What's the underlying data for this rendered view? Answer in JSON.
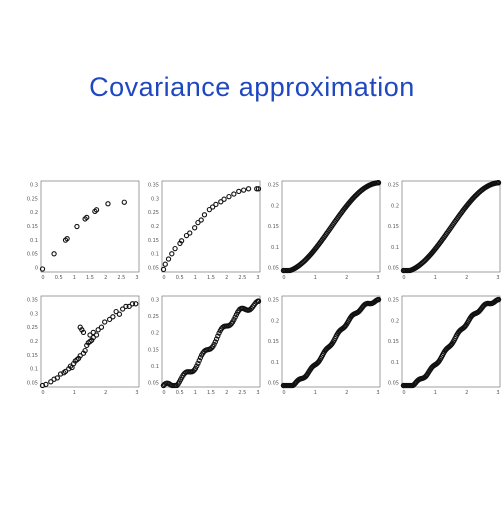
{
  "title": "Covariance approximation",
  "chart_data": [
    {
      "type": "scatter",
      "yticks": [
        "0.3",
        "0.25",
        "0.2",
        "0.15",
        "0.1",
        "0.05",
        "0"
      ],
      "xticks": [
        "0",
        "0.5",
        "1",
        "1.5",
        "2",
        "2.5",
        "3"
      ],
      "xlim": [
        0,
        3
      ],
      "ylim": [
        0,
        0.3
      ],
      "points": [
        [
          0.0,
          0.01
        ],
        [
          0.4,
          0.06
        ],
        [
          0.75,
          0.105
        ],
        [
          0.8,
          0.11
        ],
        [
          1.1,
          0.15
        ],
        [
          1.35,
          0.175
        ],
        [
          1.4,
          0.18
        ],
        [
          1.65,
          0.2
        ],
        [
          1.7,
          0.205
        ],
        [
          2.05,
          0.225
        ],
        [
          2.55,
          0.23
        ]
      ]
    },
    {
      "type": "scatter",
      "yticks": [
        "0.35",
        "0.3",
        "0.25",
        "0.2",
        "0.15",
        "0.1",
        "0.05"
      ],
      "xticks": [
        "0",
        "0.5",
        "1",
        "1.5",
        "2",
        "2.5",
        "3"
      ],
      "xlim": [
        0,
        3
      ],
      "ylim": [
        0,
        0.35
      ],
      "points": [
        [
          0.0,
          0.01
        ],
        [
          0.1,
          0.03
        ],
        [
          0.2,
          0.05
        ],
        [
          0.3,
          0.07
        ],
        [
          0.4,
          0.09
        ],
        [
          0.55,
          0.11
        ],
        [
          0.6,
          0.12
        ],
        [
          0.75,
          0.14
        ],
        [
          0.85,
          0.15
        ],
        [
          1.0,
          0.17
        ],
        [
          1.1,
          0.19
        ],
        [
          1.2,
          0.2
        ],
        [
          1.3,
          0.22
        ],
        [
          1.45,
          0.24
        ],
        [
          1.55,
          0.25
        ],
        [
          1.65,
          0.26
        ],
        [
          1.8,
          0.27
        ],
        [
          1.9,
          0.28
        ],
        [
          2.05,
          0.29
        ],
        [
          2.2,
          0.3
        ],
        [
          2.35,
          0.31
        ],
        [
          2.5,
          0.315
        ],
        [
          2.65,
          0.32
        ],
        [
          2.9,
          0.32
        ],
        [
          3.05,
          0.32
        ]
      ]
    },
    {
      "type": "scatter",
      "yticks": [
        "0.25",
        "0.2",
        "0.15",
        "0.1",
        "0.05"
      ],
      "xticks": [
        "0",
        "1",
        "2",
        "3"
      ],
      "xlim": [
        0,
        3
      ],
      "ylim": [
        0,
        0.27
      ],
      "curve": {
        "amplitude": 0.265,
        "range": 3,
        "n": 95
      }
    },
    {
      "type": "scatter",
      "yticks": [
        "0.25",
        "0.2",
        "0.15",
        "0.1",
        "0.05"
      ],
      "xticks": [
        "0",
        "1",
        "2",
        "3"
      ],
      "xlim": [
        0,
        3
      ],
      "ylim": [
        0,
        0.27
      ],
      "curve": {
        "amplitude": 0.265,
        "range": 3,
        "n": 95
      }
    },
    {
      "type": "scatter",
      "yticks": [
        "0.35",
        "0.3",
        "0.25",
        "0.2",
        "0.15",
        "0.1",
        "0.05"
      ],
      "xticks": [
        "0",
        "1",
        "2",
        "3"
      ],
      "xlim": [
        0,
        3
      ],
      "ylim": [
        0,
        0.35
      ],
      "points": [
        [
          0.0,
          0.0
        ],
        [
          0.15,
          0.01
        ],
        [
          0.3,
          0.02
        ],
        [
          0.4,
          0.03
        ],
        [
          0.5,
          0.035
        ],
        [
          0.6,
          0.05
        ],
        [
          0.7,
          0.055
        ],
        [
          0.75,
          0.06
        ],
        [
          0.85,
          0.07
        ],
        [
          0.9,
          0.08
        ],
        [
          0.95,
          0.075
        ],
        [
          1.0,
          0.09
        ],
        [
          1.05,
          0.1
        ],
        [
          1.1,
          0.105
        ],
        [
          1.15,
          0.11
        ],
        [
          1.2,
          0.12
        ],
        [
          1.3,
          0.13
        ],
        [
          1.35,
          0.14
        ],
        [
          1.4,
          0.16
        ],
        [
          1.45,
          0.17
        ],
        [
          1.5,
          0.175
        ],
        [
          1.55,
          0.18
        ],
        [
          1.6,
          0.19
        ],
        [
          1.7,
          0.2
        ],
        [
          1.2,
          0.23
        ],
        [
          1.25,
          0.22
        ],
        [
          1.3,
          0.21
        ],
        [
          1.5,
          0.2
        ],
        [
          1.6,
          0.21
        ],
        [
          1.75,
          0.22
        ],
        [
          1.85,
          0.23
        ],
        [
          1.95,
          0.25
        ],
        [
          2.1,
          0.26
        ],
        [
          2.2,
          0.27
        ],
        [
          2.3,
          0.29
        ],
        [
          2.4,
          0.28
        ],
        [
          2.5,
          0.3
        ],
        [
          2.6,
          0.31
        ],
        [
          2.7,
          0.31
        ],
        [
          2.8,
          0.32
        ],
        [
          2.9,
          0.32
        ]
      ]
    },
    {
      "type": "scatter",
      "yticks": [
        "0.3",
        "0.25",
        "0.2",
        "0.15",
        "0.1",
        "0.05"
      ],
      "xticks": [
        "0",
        "0.5",
        "1",
        "1.5",
        "2",
        "2.5",
        "3"
      ],
      "xlim": [
        0,
        3
      ],
      "ylim": [
        0,
        0.33
      ],
      "curve": {
        "amplitude": 0.3,
        "range": 3,
        "n": 80,
        "jitter": 0.012
      }
    },
    {
      "type": "scatter",
      "yticks": [
        "0.25",
        "0.2",
        "0.15",
        "0.1",
        "0.05"
      ],
      "xticks": [
        "0",
        "1",
        "2",
        "3"
      ],
      "xlim": [
        0,
        3
      ],
      "ylim": [
        0,
        0.29
      ],
      "curve": {
        "amplitude": 0.275,
        "range": 3,
        "n": 110,
        "jitter": 0.004
      }
    },
    {
      "type": "scatter",
      "yticks": [
        "0.25",
        "0.2",
        "0.15",
        "0.1",
        "0.05"
      ],
      "xticks": [
        "0",
        "1",
        "2",
        "3"
      ],
      "xlim": [
        0,
        3
      ],
      "ylim": [
        0,
        0.29
      ],
      "curve": {
        "amplitude": 0.275,
        "range": 3,
        "n": 110,
        "jitter": 0.004
      }
    }
  ]
}
